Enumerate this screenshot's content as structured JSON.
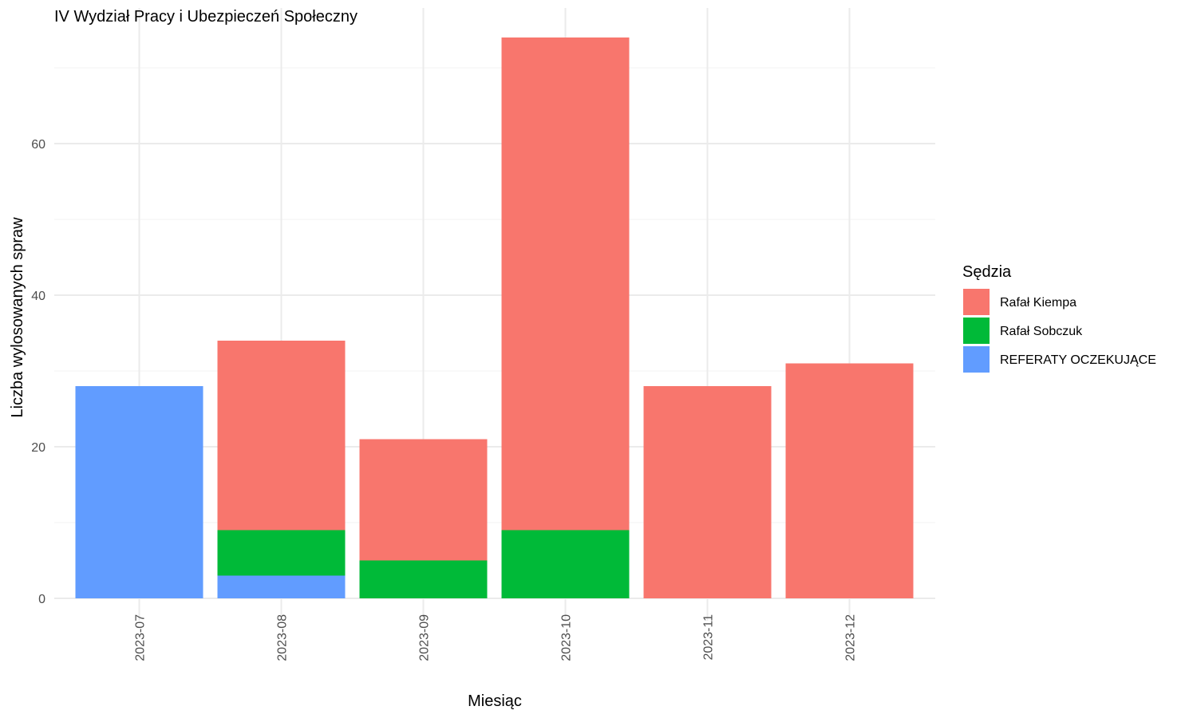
{
  "chart_data": {
    "type": "bar",
    "stacked": true,
    "title": "IV Wydział Pracy i Ubezpieczeń Społeczny",
    "xlabel": "Miesiąc",
    "ylabel": "Liczba wylosowanych spraw",
    "categories": [
      "2023-07",
      "2023-08",
      "2023-09",
      "2023-10",
      "2023-11",
      "2023-12"
    ],
    "ylim": [
      0,
      76
    ],
    "yticks": [
      0,
      20,
      40,
      60
    ],
    "grid": true,
    "legend": {
      "title": "Sędzia",
      "position": "right"
    },
    "series": [
      {
        "name": "REFERATY OCZEKUJĄCE",
        "color": "#619CFF",
        "values": [
          28,
          3,
          0,
          0,
          0,
          0
        ]
      },
      {
        "name": "Rafał Sobczuk",
        "color": "#00BA38",
        "values": [
          0,
          6,
          5,
          9,
          0,
          0
        ]
      },
      {
        "name": "Rafał Kiempa",
        "color": "#F8766D",
        "values": [
          0,
          25,
          16,
          65,
          28,
          31
        ]
      }
    ],
    "legend_order": [
      "Rafał Kiempa",
      "Rafał Sobczuk",
      "REFERATY OCZEKUJĄCE"
    ]
  }
}
